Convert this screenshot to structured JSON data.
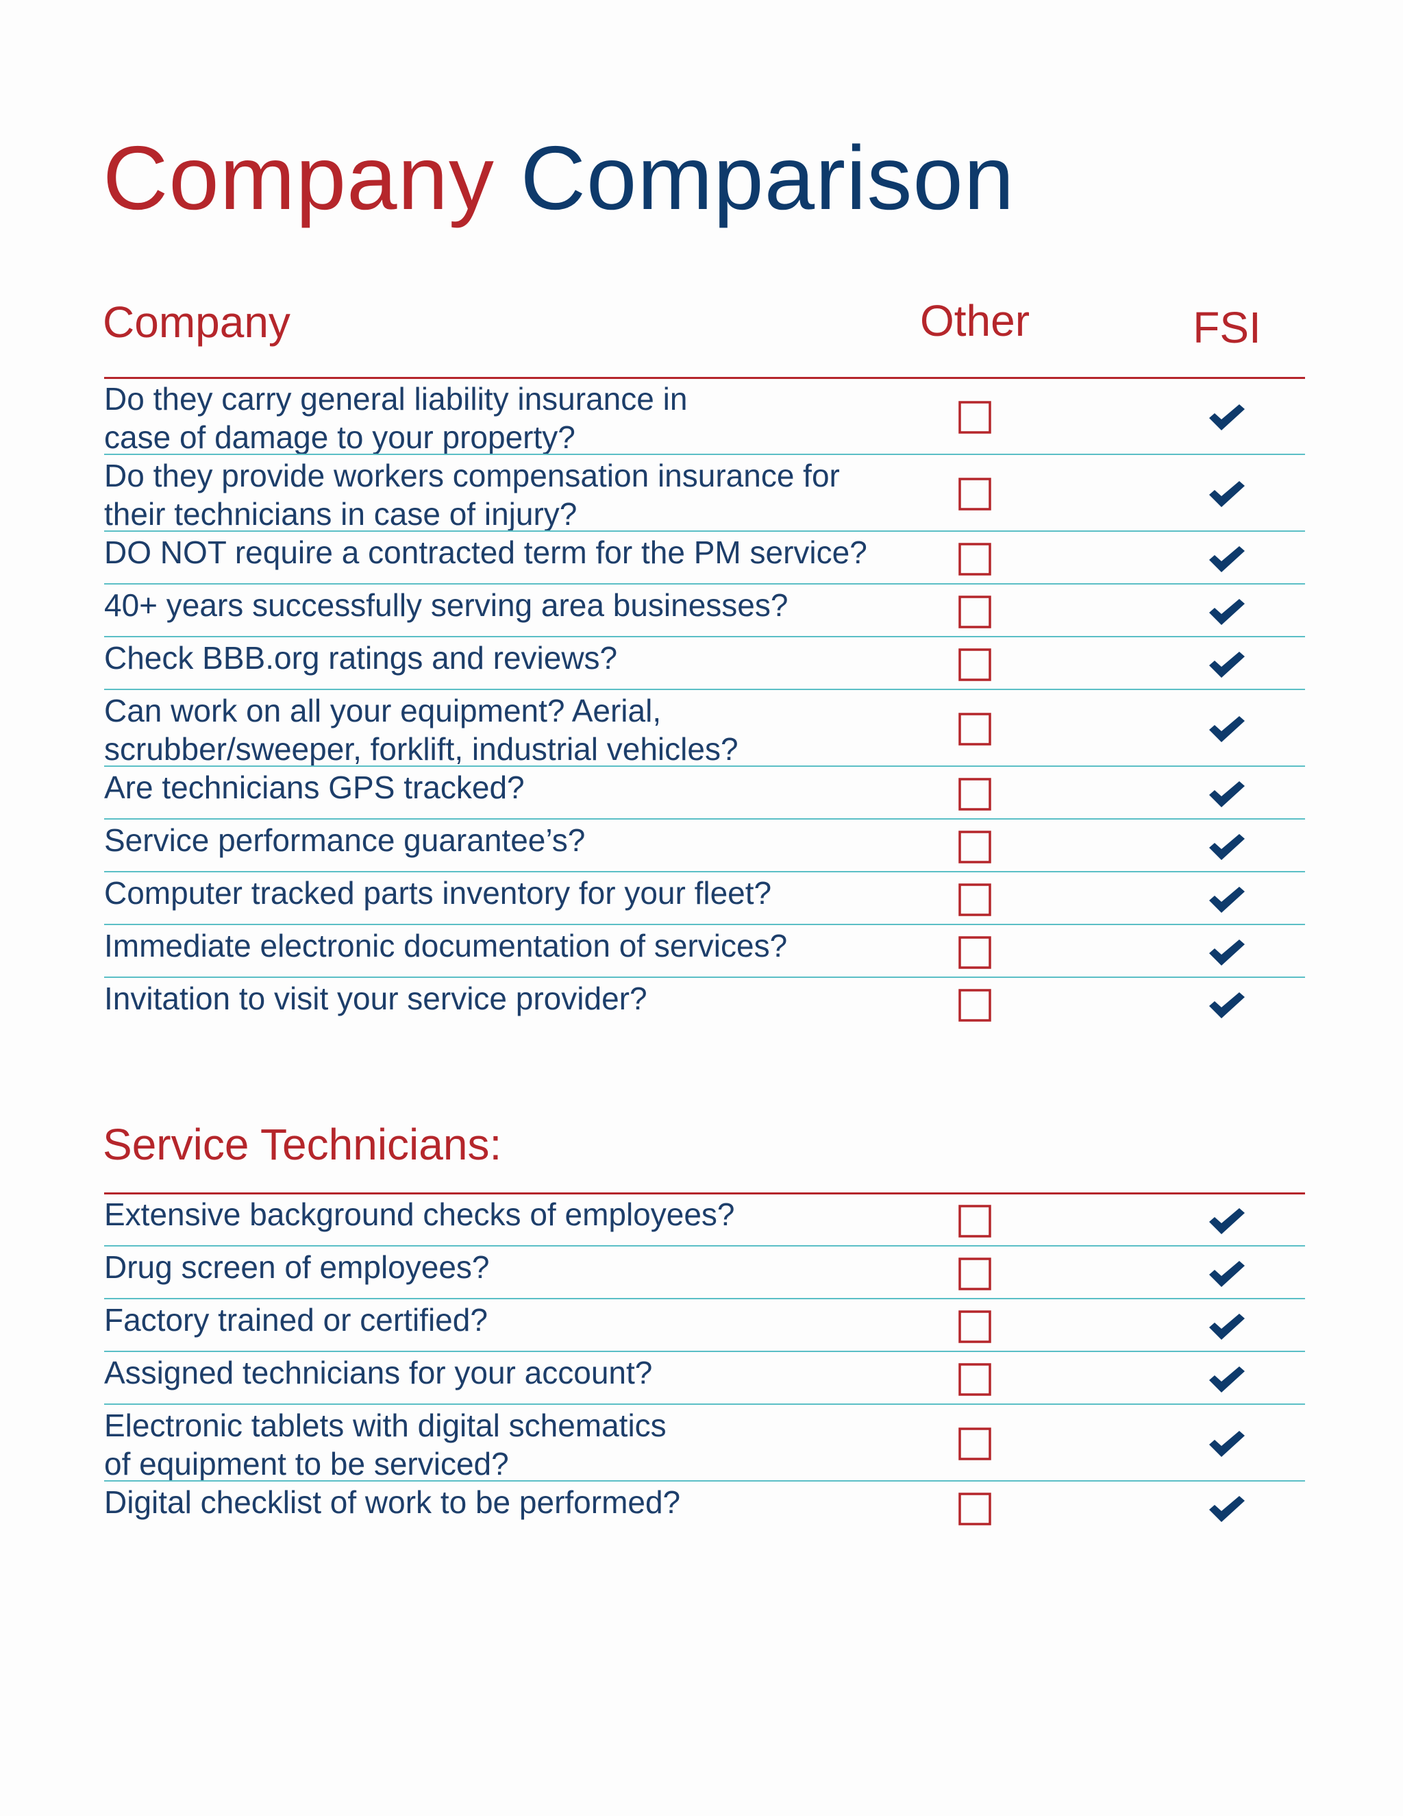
{
  "header": {
    "title_part1": "Company",
    "title_part2": "Comparison"
  },
  "sections": [
    {
      "heading": "Company",
      "col_other": "Other",
      "col_fsi": "FSI",
      "rows": [
        {
          "lines": [
            "Do they carry general liability insurance in",
            "case of damage to your property?"
          ]
        },
        {
          "lines": [
            "Do they provide workers compensation insurance for",
            "their technicians in case of injury?"
          ]
        },
        {
          "lines": [
            "DO NOT require a contracted term for the PM service?"
          ]
        },
        {
          "lines": [
            "40+ years successfully serving area businesses?"
          ]
        },
        {
          "lines": [
            "Check BBB.org ratings and reviews?"
          ]
        },
        {
          "lines": [
            "Can work on all your equipment? Aerial,",
            "scrubber/sweeper, forklift, industrial vehicles?"
          ]
        },
        {
          "lines": [
            "Are technicians GPS tracked?"
          ]
        },
        {
          "lines": [
            "Service performance guarantee’s?"
          ]
        },
        {
          "lines": [
            "Computer tracked parts inventory for your fleet?"
          ]
        },
        {
          "lines": [
            "Immediate electronic documentation of services?"
          ]
        },
        {
          "lines": [
            "Invitation to visit your service provider?"
          ]
        }
      ]
    },
    {
      "heading": "Service Technicians:",
      "rows": [
        {
          "lines": [
            "Extensive background checks of employees?"
          ]
        },
        {
          "lines": [
            "Drug screen of employees?"
          ]
        },
        {
          "lines": [
            "Factory trained or certified?"
          ]
        },
        {
          "lines": [
            "Assigned technicians for your account?"
          ]
        },
        {
          "lines": [
            "Electronic tablets with digital schematics",
            "of equipment to be serviced?"
          ]
        },
        {
          "lines": [
            "Digital checklist of work to be performed?"
          ]
        }
      ]
    }
  ]
}
